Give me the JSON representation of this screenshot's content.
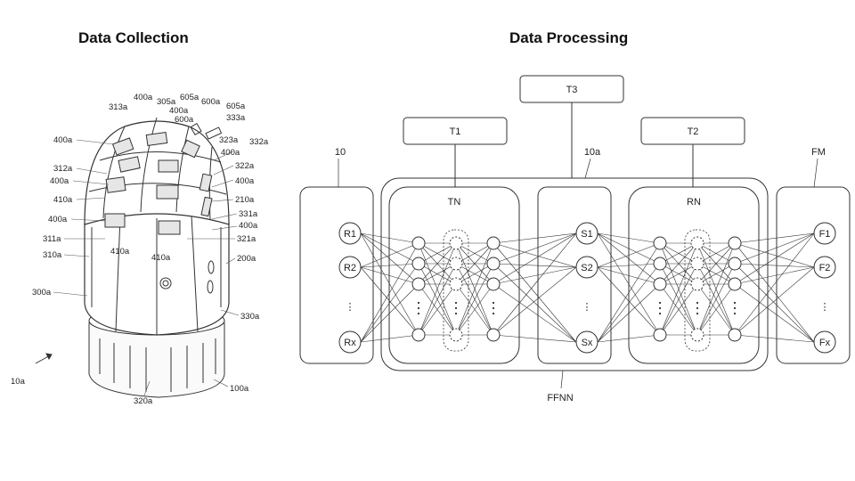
{
  "titles": {
    "left": "Data Collection",
    "right": "Data Processing"
  },
  "device_labels": [
    "400a",
    "305a",
    "605a",
    "600a",
    "605a",
    "313a",
    "400a",
    "600a",
    "333a",
    "400a",
    "323a",
    "332a",
    "312a",
    "400a",
    "322a",
    "400a",
    "400a",
    "410a",
    "210a",
    "331a",
    "400a",
    "400a",
    "311a",
    "410a",
    "410a",
    "321a",
    "310a",
    "200a",
    "300a",
    "330a",
    "10a",
    "320a",
    "100a"
  ],
  "network": {
    "top_boxes": {
      "t1": "T1",
      "t2": "T2",
      "t3": "T3"
    },
    "region_labels": {
      "input": "10",
      "middle": "10a",
      "output": "FM",
      "bottom": "FFNN",
      "tn": "TN",
      "rn": "RN"
    },
    "input_nodes": [
      "R1",
      "R2",
      "Rx"
    ],
    "middle_nodes": [
      "S1",
      "S2",
      "Sx"
    ],
    "output_nodes": [
      "F1",
      "F2",
      "Fx"
    ],
    "ellipsis": "⋮"
  }
}
